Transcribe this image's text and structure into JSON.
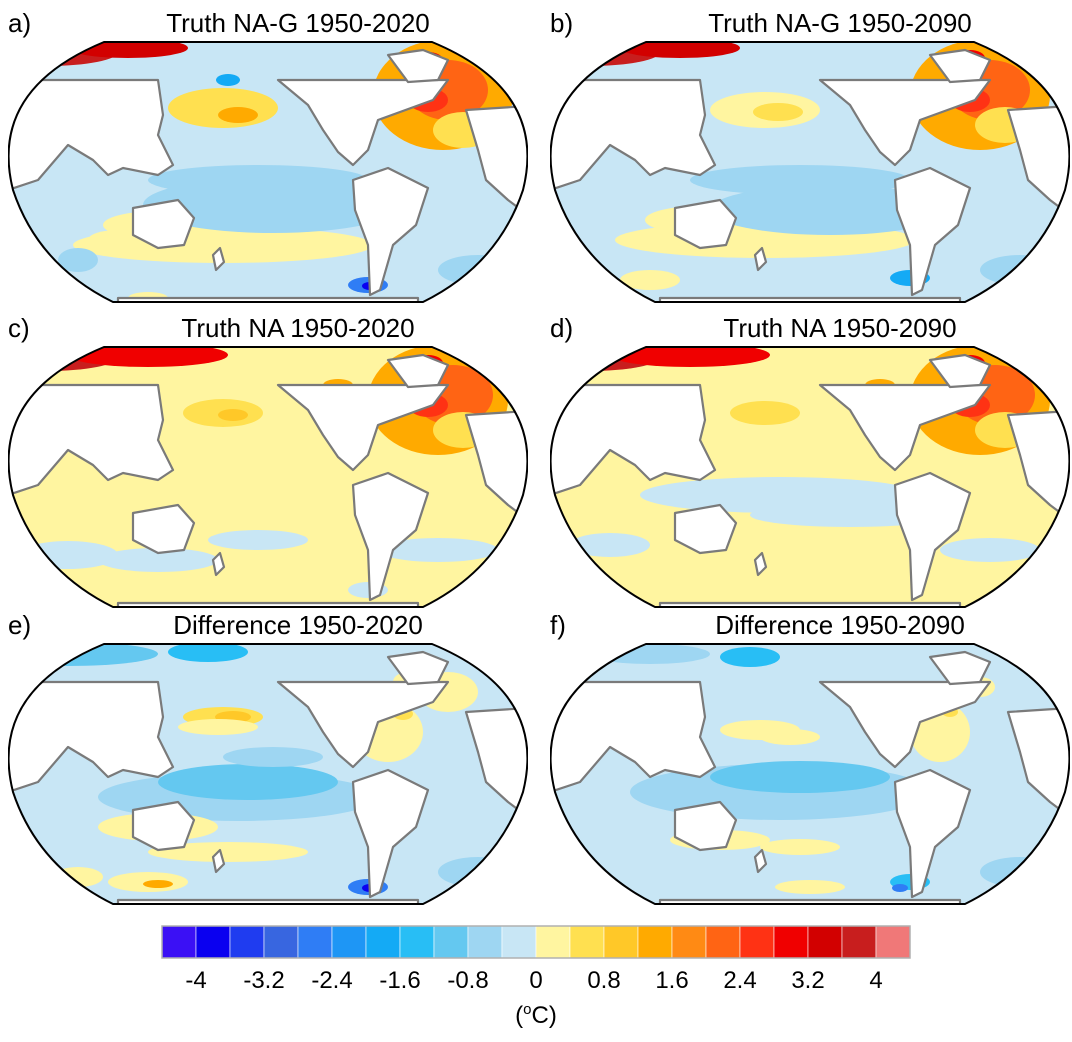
{
  "panels": [
    {
      "label": "a)",
      "title": "Truth NA-G 1950-2020",
      "scenario": "nag2020"
    },
    {
      "label": "b)",
      "title": "Truth NA-G 1950-2090",
      "scenario": "nag2090"
    },
    {
      "label": "c)",
      "title": "Truth NA 1950-2020",
      "scenario": "na2020"
    },
    {
      "label": "d)",
      "title": "Truth NA 1950-2090",
      "scenario": "na2090"
    },
    {
      "label": "e)",
      "title": "Difference 1950-2020",
      "scenario": "diff2020"
    },
    {
      "label": "f)",
      "title": "Difference 1950-2090",
      "scenario": "diff2090"
    }
  ],
  "colorbar": {
    "colors": [
      "#3b10f5",
      "#0a00f0",
      "#1f3cf0",
      "#3866e0",
      "#2f7df5",
      "#1e96f5",
      "#14aaf5",
      "#28bef5",
      "#64c8f0",
      "#9ed6f2",
      "#c8e6f5",
      "#fff5a0",
      "#ffe050",
      "#ffc828",
      "#ffaa00",
      "#ff8a14",
      "#ff6414",
      "#ff3214",
      "#f00000",
      "#d20000",
      "#c81e1e",
      "#f07878"
    ],
    "ticks": [
      "-4",
      "-3.2",
      "-2.4",
      "-1.6",
      "-0.8",
      "0",
      "0.8",
      "1.6",
      "2.4",
      "3.2",
      "4"
    ],
    "unit_prefix": "(",
    "unit_super": "o",
    "unit_suffix": "C)"
  },
  "colors": {
    "land": "#ffffff",
    "coast": "#7a7a7a",
    "border": "#000000"
  }
}
